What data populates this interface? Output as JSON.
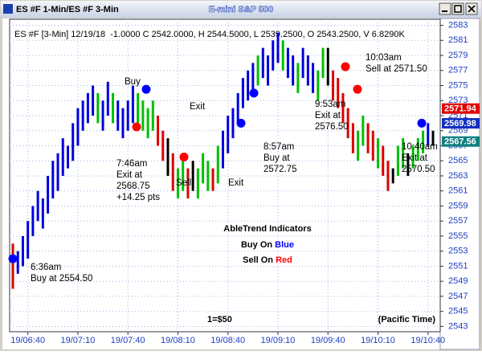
{
  "window": {
    "title": "ES #F 1-Min/ES #F 3-Min",
    "subtitle": "E-mini S&P 500"
  },
  "chart_data": {
    "type": "hlbar",
    "info": "ES #F [3-Min] 12/19/18  -1.0000 C 2542.0000, H 2544.5000, L 2539.2500, O 2543.2500, V 6.8290K",
    "categories": [
      null,
      null,
      null,
      "19/06:40",
      null,
      null,
      null,
      null,
      null,
      null,
      null,
      null,
      null,
      "19/07:10",
      null,
      null,
      null,
      null,
      null,
      null,
      null,
      null,
      null,
      "19/07:40",
      null,
      null,
      null,
      null,
      null,
      null,
      null,
      null,
      null,
      "19/08:10",
      null,
      null,
      null,
      null,
      null,
      null,
      null,
      null,
      null,
      "19/08:40",
      null,
      null,
      null,
      null,
      null,
      null,
      null,
      null,
      null,
      "19/09:10",
      null,
      null,
      null,
      null,
      null,
      null,
      null,
      null,
      null,
      "19/09:40",
      null,
      null,
      null,
      null,
      null,
      null,
      null,
      null,
      null,
      "19/10:10",
      null,
      null,
      null,
      null,
      null,
      null,
      null,
      null,
      null,
      "19/10:40",
      null
    ],
    "high": [
      2554,
      2553,
      2555,
      2557,
      2559,
      2561,
      2560,
      2563,
      2565,
      2566,
      2568,
      2567,
      2570,
      2572,
      2573,
      2574,
      2575,
      2574,
      2573,
      2575.5,
      2574,
      2573,
      2572,
      2573,
      2575,
      2574,
      2573,
      2572,
      2573,
      2571,
      2569,
      2568,
      2566,
      2564,
      2565,
      2564,
      2565,
      2564,
      2566,
      2565,
      2564,
      2567,
      2569,
      2571,
      2572,
      2574,
      2576,
      2577,
      2578,
      2579,
      2580,
      2579,
      2581,
      2582,
      2581,
      2580,
      2579,
      2578,
      2580,
      2579,
      2578,
      2577,
      2580,
      2580,
      2577,
      2576,
      2574,
      2572,
      2570,
      2569,
      2571,
      2570,
      2569,
      2568,
      2567,
      2565,
      2564,
      2567,
      2568,
      2566,
      2567,
      2568,
      2569,
      2570,
      2569
    ],
    "low": [
      2548,
      2550,
      2551,
      2552,
      2555,
      2557,
      2556,
      2558,
      2560,
      2561,
      2563,
      2564,
      2565,
      2567,
      2569,
      2570,
      2571,
      2570,
      2569,
      2571,
      2570,
      2569,
      2568,
      2569,
      2570,
      2570,
      2569,
      2568,
      2569,
      2567,
      2565,
      2563,
      2561,
      2560,
      2561,
      2560,
      2561,
      2560,
      2562,
      2561,
      2561,
      2562,
      2564,
      2566,
      2568,
      2570,
      2572,
      2573,
      2574,
      2575,
      2576,
      2575,
      2577,
      2578,
      2577,
      2576,
      2575,
      2574,
      2576,
      2575,
      2574,
      2573,
      2576,
      2575,
      2573,
      2572,
      2570,
      2568,
      2566,
      2565,
      2567,
      2566,
      2565,
      2564,
      2563,
      2561,
      2562,
      2563,
      2564,
      2563,
      2564,
      2565,
      2566,
      2567,
      2567
    ],
    "bar_colors": [
      "#e00000",
      "#0000e0",
      "#0000e0",
      "#0000e0",
      "#0000e0",
      "#0000e0",
      "#0000e0",
      "#0000e0",
      "#0000e0",
      "#0000e0",
      "#0000e0",
      "#0000e0",
      "#0000e0",
      "#0000e0",
      "#0000e0",
      "#0000e0",
      "#0000e0",
      "#00c000",
      "#0000e0",
      "#0000e0",
      "#00c000",
      "#0000e0",
      "#0000e0",
      "#0000e0",
      "#0000e0",
      "#00c000",
      "#00c000",
      "#00c000",
      "#00c000",
      "#e00000",
      "#e00000",
      "#000000",
      "#e00000",
      "#00c000",
      "#00c000",
      "#e00000",
      "#000000",
      "#00c000",
      "#00c000",
      "#00c000",
      "#e00000",
      "#00c000",
      "#0000e0",
      "#0000e0",
      "#0000e0",
      "#0000e0",
      "#0000e0",
      "#0000e0",
      "#0000e0",
      "#00c000",
      "#0000e0",
      "#0000e0",
      "#0000e0",
      "#0000e0",
      "#00c000",
      "#0000e0",
      "#0000e0",
      "#00c000",
      "#0000e0",
      "#0000e0",
      "#0000e0",
      "#00c000",
      "#00c000",
      "#000000",
      "#e00000",
      "#e00000",
      "#e00000",
      "#e00000",
      "#e00000",
      "#00c000",
      "#00c000",
      "#e00000",
      "#e00000",
      "#00c000",
      "#e00000",
      "#e00000",
      "#000000",
      "#00c000",
      "#00c000",
      "#000000",
      "#00c000",
      "#00c000",
      "#00c000",
      "#0000e0",
      "#000000"
    ],
    "ylim": [
      2542.3,
      2583.8
    ],
    "yticks": [
      2543,
      2545,
      2547,
      2549,
      2551,
      2553,
      2555,
      2557,
      2559,
      2561,
      2563,
      2565,
      2567,
      2569,
      2571,
      2573,
      2575,
      2577,
      2579,
      2581,
      2583
    ],
    "grid": true,
    "price_markers": [
      {
        "value": 2571.94,
        "color": "#e00000"
      },
      {
        "value": 2569.98,
        "color": "#1030c0"
      },
      {
        "value": 2567.56,
        "color": "#108080"
      }
    ],
    "signals": [
      {
        "value": 2552,
        "color": "#0000ff"
      },
      {
        "value": 2574.5,
        "color": "#0000ff"
      },
      {
        "value": 2569.5,
        "color": "#ff0000"
      },
      {
        "value": 2565.5,
        "color": "#ff0000"
      },
      {
        "value": 2570,
        "color": "#0000ff"
      },
      {
        "value": 2574,
        "color": "#0000ff"
      },
      {
        "value": 2577.5,
        "color": "#ff0000"
      },
      {
        "value": 2574.5,
        "color": "#ff0000"
      },
      {
        "value": 2570,
        "color": "#0000ff"
      }
    ],
    "annotations": [
      {
        "lines": [
          "Buy"
        ]
      },
      {
        "lines": [
          "Exit"
        ]
      },
      {
        "lines": [
          "Sell"
        ]
      },
      {
        "lines": [
          "Exit"
        ]
      },
      {
        "lines": [
          "6:36am",
          "Buy at 2554.50"
        ]
      },
      {
        "lines": [
          "7:46am",
          "Exit at",
          "2568.75",
          "+14.25 pts"
        ]
      },
      {
        "lines": [
          "8:57am",
          "Buy at",
          "2572.75"
        ]
      },
      {
        "lines": [
          "9:53am",
          "Exit at",
          "2576.50"
        ]
      },
      {
        "lines": [
          "10:03am",
          "Sell at 2571.50"
        ]
      },
      {
        "lines": [
          "10:40am",
          "Exit at",
          "2570.50"
        ]
      }
    ],
    "legend_title": "AbleTrend Indicators",
    "legend_lines": [
      {
        "text": "Buy On ",
        "word": "Blue",
        "color": "#0000ff"
      },
      {
        "text": "Sell On ",
        "word": "Red",
        "color": "#ff0000"
      }
    ],
    "footnote": "1=$50",
    "timezone": "(Pacific Time)"
  }
}
